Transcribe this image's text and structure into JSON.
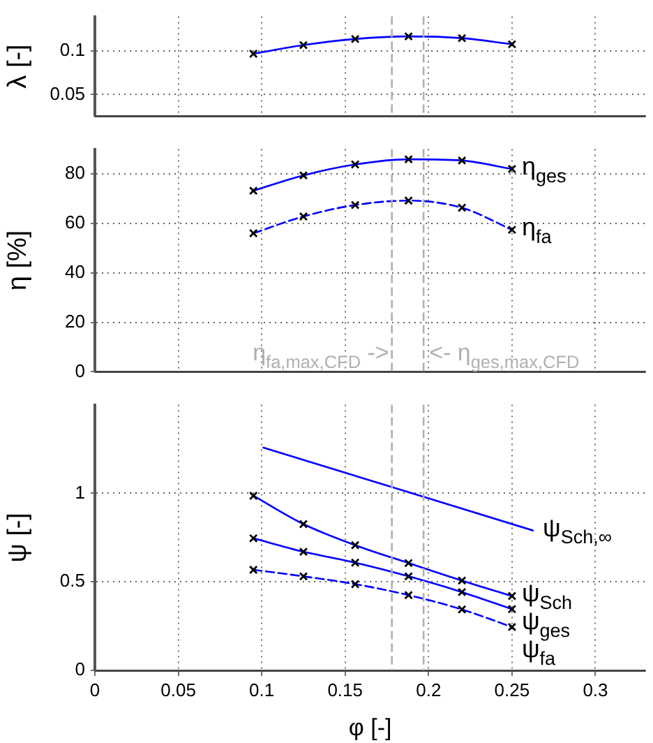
{
  "chart_data": [
    {
      "type": "line",
      "ylabel": "λ [-]",
      "xlim": [
        0,
        0.33
      ],
      "xticks": [
        0,
        0.05,
        0.1,
        0.15,
        0.2,
        0.25,
        0.3
      ],
      "ylim": [
        0.025,
        0.14
      ],
      "yticks": [
        0.05,
        0.1
      ],
      "grid": true,
      "legend": false,
      "tick_labels": "y",
      "marker": "cross",
      "series": [
        {
          "color": "#0000ff",
          "x": [
            0.095,
            0.125,
            0.156,
            0.188,
            0.22,
            0.25
          ],
          "values": [
            0.097,
            0.107,
            0.114,
            0.117,
            0.115,
            0.108
          ]
        }
      ],
      "ref_lines": [
        {
          "axis": "x",
          "value": 0.178,
          "color": "#b0b0b0",
          "line_style": "dashed"
        },
        {
          "axis": "x",
          "value": 0.197,
          "color": "#b0b0b0",
          "line_style": "dashed"
        }
      ]
    },
    {
      "type": "line",
      "ylabel": "η [%]",
      "xlim": [
        0,
        0.33
      ],
      "xticks": [
        0,
        0.05,
        0.1,
        0.15,
        0.2,
        0.25,
        0.3
      ],
      "ylim": [
        0,
        90
      ],
      "yticks": [
        0,
        20,
        40,
        60,
        80
      ],
      "grid": true,
      "legend": false,
      "tick_labels": "y",
      "marker": "cross",
      "series": [
        {
          "name": "η$_{ges}$",
          "color": "#0000ff",
          "line_style": "solid",
          "x": [
            0.095,
            0.125,
            0.156,
            0.188,
            0.22,
            0.25
          ],
          "values": [
            73.2,
            79.4,
            83.8,
            85.9,
            85.4,
            82
          ]
        },
        {
          "name": "η$_{fa}$",
          "color": "#0000ff",
          "line_style": "dashed",
          "x": [
            0.095,
            0.125,
            0.156,
            0.188,
            0.22,
            0.25
          ],
          "values": [
            56,
            62.8,
            67.4,
            69.2,
            66.3,
            57.4
          ]
        }
      ],
      "ref_lines": [
        {
          "axis": "x",
          "value": 0.178,
          "label": "η$_{fa,max,CFD}$ ->",
          "color": "#b0b0b0",
          "line_style": "dashed"
        },
        {
          "axis": "x",
          "value": 0.197,
          "label": "<- η$_{ges,max,CFD}$",
          "color": "#b0b0b0",
          "line_style": "dashed"
        }
      ]
    },
    {
      "type": "line",
      "xlabel": "φ [-]",
      "ylabel": "ψ [-]",
      "xlim": [
        0,
        0.33
      ],
      "xticks": [
        0,
        0.05,
        0.1,
        0.15,
        0.2,
        0.25,
        0.3
      ],
      "ylim": [
        0,
        1.5
      ],
      "yticks": [
        0,
        0.5,
        1
      ],
      "grid": true,
      "legend": false,
      "marker": "cross",
      "series": [
        {
          "name": "ψ$_{Sch,∞}$",
          "color": "#0000ff",
          "line_style": "solid",
          "marker": "none",
          "x": [
            0.101,
            0.2626
          ],
          "values": [
            1.258,
            0.79
          ]
        },
        {
          "name": "ψ$_{Sch}$",
          "color": "#0000ff",
          "line_style": "solid",
          "x": [
            0.095,
            0.125,
            0.156,
            0.188,
            0.22,
            0.25
          ],
          "values": [
            0.986,
            0.826,
            0.707,
            0.606,
            0.507,
            0.42
          ]
        },
        {
          "name": "ψ$_{ges}$",
          "color": "#0000ff",
          "line_style": "solid",
          "x": [
            0.095,
            0.125,
            0.156,
            0.188,
            0.22,
            0.25
          ],
          "values": [
            0.746,
            0.67,
            0.608,
            0.531,
            0.442,
            0.346
          ]
        },
        {
          "name": "ψ$_{fa}$",
          "color": "#0000ff",
          "line_style": "dashed",
          "x": [
            0.095,
            0.125,
            0.156,
            0.188,
            0.22,
            0.25
          ],
          "values": [
            0.568,
            0.531,
            0.487,
            0.425,
            0.344,
            0.245
          ]
        }
      ],
      "ref_lines": [
        {
          "axis": "x",
          "value": 0.178,
          "color": "#b0b0b0",
          "line_style": "dashed"
        },
        {
          "axis": "x",
          "value": 0.197,
          "color": "#b0b0b0",
          "line_style": "dashed"
        }
      ]
    }
  ]
}
